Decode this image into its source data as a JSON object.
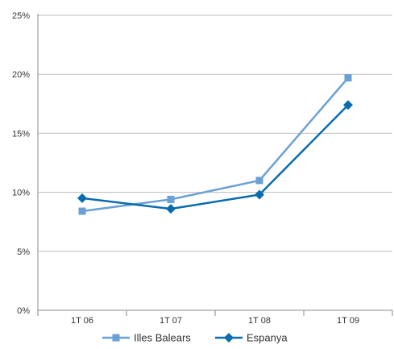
{
  "chart_data": {
    "type": "line",
    "categories": [
      "1T 06",
      "1T 07",
      "1T 08",
      "1T 09"
    ],
    "series": [
      {
        "name": "Illes Balears",
        "values": [
          8.4,
          9.4,
          11.0,
          19.7
        ],
        "color": "#6aa0d6",
        "marker": "square"
      },
      {
        "name": "Espanya",
        "values": [
          9.5,
          8.6,
          9.8,
          17.4
        ],
        "color": "#0a6cb0",
        "marker": "diamond"
      }
    ],
    "y_ticks": [
      "0%",
      "5%",
      "10%",
      "15%",
      "20%",
      "25%"
    ],
    "y_tick_values": [
      0,
      5,
      10,
      15,
      20,
      25
    ],
    "ylim": [
      0,
      25
    ],
    "grid": true,
    "legend_position": "bottom",
    "title": "",
    "xlabel": "",
    "ylabel": ""
  }
}
